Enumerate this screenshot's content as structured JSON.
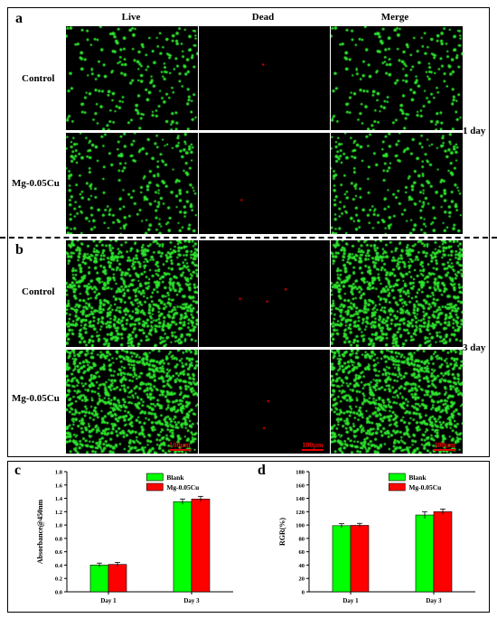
{
  "panels": {
    "a": "a",
    "b": "b",
    "c": "c",
    "d": "d"
  },
  "columns": [
    "Live",
    "Dead",
    "Merge"
  ],
  "rows": [
    "Control",
    "Mg-0.05Cu"
  ],
  "timepoints": [
    "1 day",
    "3 day"
  ],
  "scale_bar": "100μm",
  "colors": {
    "live_cell": "#2ee62e",
    "dead_cell": "#e00000",
    "blank_bar": "#00ff00",
    "mg_bar": "#ff0000"
  },
  "chart_data": [
    {
      "type": "bar",
      "panel": "c",
      "categories": [
        "Day 1",
        "Day 3"
      ],
      "series": [
        {
          "name": "Blank",
          "values": [
            0.4,
            1.35
          ],
          "errors": [
            0.03,
            0.04
          ]
        },
        {
          "name": "Mg-0.05Cu",
          "values": [
            0.41,
            1.39
          ],
          "errors": [
            0.03,
            0.04
          ]
        }
      ],
      "ylabel": "Absorbance@450nm",
      "xlabel": "",
      "ylim": [
        0.0,
        1.8
      ],
      "yticks": [
        "0.0",
        "0.2",
        "0.4",
        "0.6",
        "0.8",
        "1.0",
        "1.2",
        "1.4",
        "1.6",
        "1.8"
      ],
      "legend": "top-center"
    },
    {
      "type": "bar",
      "panel": "d",
      "categories": [
        "Day 1",
        "Day 3"
      ],
      "series": [
        {
          "name": "Blank",
          "values": [
            99,
            115
          ],
          "errors": [
            3,
            5
          ]
        },
        {
          "name": "Mg-0.05Cu",
          "values": [
            99.5,
            120
          ],
          "errors": [
            3,
            4
          ]
        }
      ],
      "ylabel": "RGR(%)",
      "xlabel": "",
      "ylim": [
        0,
        180
      ],
      "yticks": [
        "0",
        "20",
        "40",
        "60",
        "80",
        "100",
        "120",
        "140",
        "160",
        "180"
      ],
      "legend": "top-center"
    }
  ]
}
